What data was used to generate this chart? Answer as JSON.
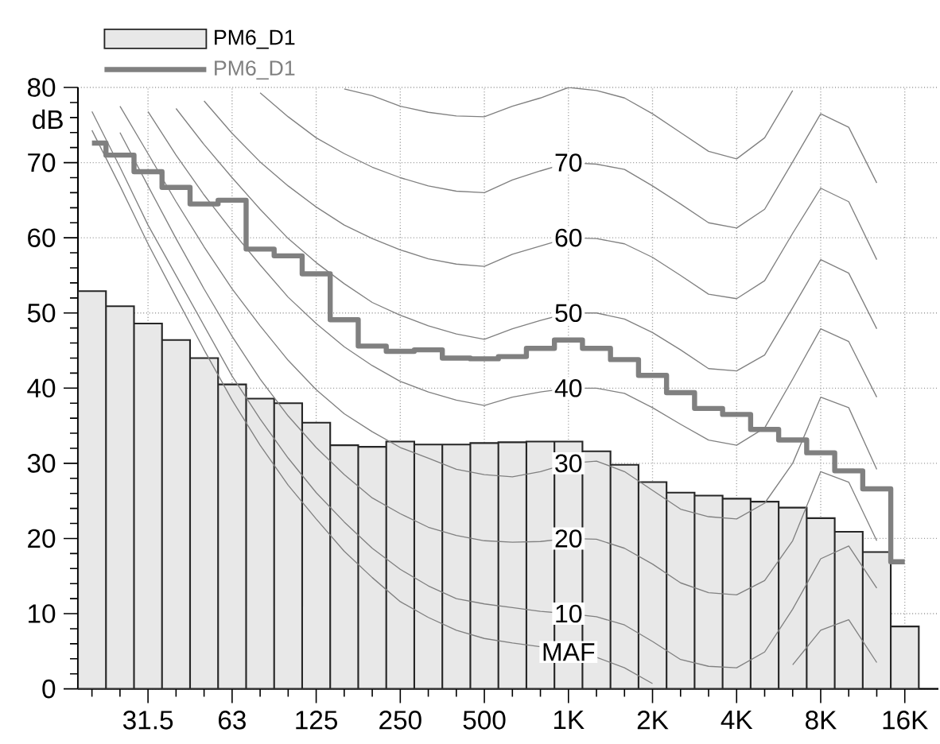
{
  "chart_data": {
    "type": "bar",
    "ylabel": "dB",
    "categories": [
      null,
      null,
      "31.5",
      null,
      null,
      "63",
      null,
      null,
      "125",
      null,
      null,
      "250",
      null,
      null,
      "500",
      null,
      null,
      "1K",
      null,
      null,
      "2K",
      null,
      null,
      "4K",
      null,
      null,
      "8K",
      null,
      null,
      "16K"
    ],
    "ylim": [
      0,
      80
    ],
    "yticks": [
      0,
      10,
      20,
      30,
      40,
      50,
      60,
      70,
      80
    ],
    "grid": true,
    "legend": "top left",
    "series": [
      {
        "name": "PM6_D1",
        "type": "bar",
        "color": "#e8e8e8",
        "values": [
          52.9,
          50.9,
          48.6,
          46.4,
          44.0,
          40.5,
          38.6,
          38.0,
          35.4,
          32.4,
          32.2,
          32.9,
          32.5,
          32.5,
          32.7,
          32.8,
          32.9,
          32.9,
          31.6,
          29.8,
          27.5,
          26.1,
          25.7,
          25.3,
          24.9,
          24.1,
          22.7,
          20.9,
          18.2,
          8.3
        ]
      },
      {
        "name": "PM6_D1",
        "type": "step",
        "color": "#808080",
        "values": [
          72.6,
          71.0,
          68.8,
          66.7,
          64.5,
          65.0,
          58.5,
          57.6,
          55.2,
          49.1,
          45.6,
          44.9,
          45.1,
          44.0,
          43.9,
          44.2,
          45.3,
          46.4,
          45.3,
          43.8,
          41.7,
          39.4,
          37.3,
          36.5,
          34.5,
          33.1,
          31.4,
          29.0,
          26.6,
          16.9
        ]
      },
      {
        "type": "line",
        "color": "#808080",
        "values": [
          null,
          null,
          null,
          null,
          null,
          null,
          null,
          null,
          null,
          79.8,
          78.9,
          77.5,
          76.7,
          76.2,
          76.1,
          77.5,
          78.6,
          80,
          79.6,
          78.6,
          76.5,
          74.0,
          71.5,
          70.5,
          73.3,
          79.6,
          null,
          null,
          null,
          null
        ]
      },
      {
        "name": "70",
        "type": "line",
        "color": "#808080",
        "values": [
          null,
          null,
          null,
          null,
          null,
          null,
          79.3,
          76.1,
          73.3,
          71.2,
          69.4,
          68.0,
          66.9,
          66.2,
          66.0,
          67.7,
          68.9,
          70,
          69.8,
          69.1,
          66.9,
          64.5,
          62.0,
          61.3,
          63.8,
          70.1,
          76.5,
          74.7,
          67.3,
          null
        ]
      },
      {
        "name": "60",
        "type": "line",
        "color": "#808080",
        "values": [
          null,
          null,
          null,
          null,
          78.2,
          73.9,
          70.1,
          66.9,
          64.1,
          61.7,
          59.9,
          58.4,
          57.2,
          56.5,
          56.2,
          57.8,
          58.9,
          60,
          59.9,
          59.2,
          57.4,
          55.0,
          52.5,
          51.9,
          54.3,
          60.6,
          66.6,
          64.8,
          57.1,
          null
        ]
      },
      {
        "name": "50",
        "type": "line",
        "color": "#808080",
        "values": [
          null,
          null,
          null,
          77.2,
          72.4,
          68.0,
          63.8,
          59.9,
          56.7,
          53.9,
          51.4,
          49.7,
          48.3,
          47.2,
          46.5,
          47.9,
          49.0,
          50,
          50.0,
          49.2,
          47.4,
          45.1,
          42.6,
          42.3,
          44.4,
          50.7,
          57.1,
          55.3,
          47.9,
          null
        ]
      },
      {
        "name": "40",
        "type": "line",
        "color": "#808080",
        "values": [
          null,
          null,
          76.8,
          71.0,
          65.7,
          60.9,
          56.4,
          52.1,
          48.6,
          45.5,
          43.0,
          40.9,
          39.5,
          38.4,
          37.7,
          38.8,
          39.5,
          40,
          40.0,
          39.3,
          37.4,
          35.2,
          33.1,
          32.4,
          34.7,
          41.2,
          47.9,
          46.2,
          38.8,
          null
        ]
      },
      {
        "name": "30",
        "type": "line",
        "color": "#808080",
        "values": [
          null,
          77.5,
          71.2,
          64.8,
          58.8,
          53.2,
          48.3,
          43.7,
          39.8,
          36.6,
          34.2,
          32.1,
          30.7,
          29.2,
          28.5,
          28.2,
          28.9,
          30,
          30.3,
          28.9,
          26.4,
          23.9,
          22.9,
          22.6,
          24.7,
          30.0,
          38.8,
          37.4,
          29.2,
          null
        ]
      },
      {
        "name": "20",
        "type": "line",
        "color": "#808080",
        "values": [
          null,
          74.0,
          66.9,
          59.9,
          53.2,
          46.9,
          41.2,
          36.3,
          32.1,
          28.5,
          25.4,
          23.3,
          21.5,
          20.4,
          19.7,
          19.5,
          19.6,
          20,
          19.9,
          18.7,
          16.6,
          14.1,
          12.8,
          12.5,
          14.4,
          19.7,
          28.9,
          27.5,
          19.7,
          null
        ]
      },
      {
        "name": "10",
        "type": "line",
        "color": "#808080",
        "values": [
          76.8,
          69.4,
          61.7,
          55.0,
          48.3,
          41.6,
          35.9,
          30.7,
          26.1,
          22.2,
          18.7,
          15.9,
          13.7,
          12.0,
          11.3,
          10.8,
          10.3,
          10,
          9.6,
          8.5,
          6.3,
          3.9,
          3.0,
          2.8,
          4.9,
          10.6,
          17.3,
          19.0,
          13.4,
          null
        ]
      },
      {
        "name": "MAF",
        "type": "line",
        "color": "#808080",
        "values": [
          74.3,
          66.9,
          59.2,
          52.1,
          45.1,
          38.4,
          32.4,
          27.1,
          22.6,
          18.3,
          14.8,
          11.6,
          9.5,
          7.8,
          6.7,
          6.1,
          5.6,
          4.9,
          4.2,
          2.8,
          0.7,
          null,
          null,
          null,
          null,
          3.2,
          7.8,
          9.2,
          3.5,
          null
        ]
      }
    ]
  }
}
